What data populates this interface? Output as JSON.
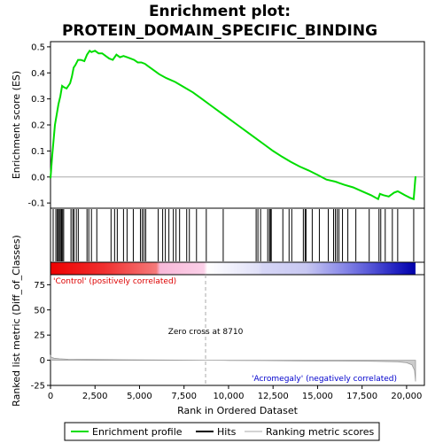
{
  "chart_data": {
    "type": "line",
    "title_line1": "Enrichment plot:",
    "title_line2": "PROTEIN_DOMAIN_SPECIFIC_BINDING",
    "colors": {
      "enrichment": "#00dd00",
      "hits": "#000000",
      "metric": "#aaaaaa",
      "positive": "#dd0000",
      "negative": "#0000cc",
      "zero_line": "#aaaaaa"
    },
    "top_panel": {
      "ylabel": "Enrichment score (ES)",
      "ylim": [
        -0.12,
        0.52
      ],
      "yticks": [
        -0.1,
        0.0,
        0.1,
        0.2,
        0.3,
        0.4,
        0.5
      ],
      "ytick_labels": [
        "-0.1",
        "0.0",
        "0.1",
        "0.2",
        "0.3",
        "0.4",
        "0.5"
      ],
      "es_curve": {
        "x": [
          0,
          100,
          250,
          350,
          450,
          550,
          650,
          750,
          900,
          1100,
          1200,
          1300,
          1400,
          1550,
          1700,
          1900,
          2050,
          2200,
          2300,
          2500,
          2700,
          2900,
          3100,
          3300,
          3500,
          3700,
          3900,
          4100,
          4300,
          4500,
          4700,
          4900,
          5100,
          5300,
          5500,
          5800,
          6100,
          6500,
          7000,
          7500,
          8000,
          8500,
          9000,
          9500,
          10000,
          10500,
          11000,
          11500,
          12000,
          12500,
          13000,
          13500,
          14000,
          14500,
          15000,
          15500,
          16000,
          16500,
          17000,
          17500,
          18000,
          18400,
          18500,
          18700,
          19000,
          19300,
          19500,
          19700,
          19900,
          20200,
          20400,
          20500
        ],
        "y": [
          -0.005,
          0.085,
          0.2,
          0.24,
          0.28,
          0.31,
          0.35,
          0.345,
          0.34,
          0.36,
          0.385,
          0.42,
          0.43,
          0.45,
          0.45,
          0.445,
          0.47,
          0.485,
          0.48,
          0.485,
          0.475,
          0.475,
          0.465,
          0.455,
          0.45,
          0.47,
          0.46,
          0.465,
          0.46,
          0.455,
          0.45,
          0.44,
          0.44,
          0.435,
          0.425,
          0.41,
          0.395,
          0.38,
          0.365,
          0.345,
          0.325,
          0.3,
          0.275,
          0.25,
          0.225,
          0.2,
          0.175,
          0.15,
          0.125,
          0.1,
          0.078,
          0.058,
          0.04,
          0.025,
          0.008,
          -0.01,
          -0.018,
          -0.03,
          -0.04,
          -0.055,
          -0.07,
          -0.085,
          -0.065,
          -0.07,
          -0.075,
          -0.06,
          -0.055,
          -0.062,
          -0.07,
          -0.08,
          -0.085,
          0.003
        ]
      }
    },
    "hits_positions": [
      150,
      300,
      380,
      440,
      500,
      560,
      620,
      680,
      740,
      1150,
      1250,
      1320,
      1450,
      1560,
      2050,
      2150,
      2300,
      2600,
      3400,
      3600,
      3750,
      4100,
      4300,
      4650,
      5050,
      5150,
      5250,
      5350,
      6050,
      6300,
      6450,
      6650,
      6900,
      7050,
      7250,
      7650,
      7800,
      8200,
      8750,
      9700,
      11550,
      11650,
      11800,
      12200,
      12300,
      12350,
      12400,
      13050,
      13400,
      13550,
      14200,
      14300,
      14350,
      14700,
      15100,
      15600,
      15900,
      16000,
      16100,
      16200,
      16400,
      16700,
      17150,
      17900,
      18450,
      18550,
      18800,
      19200,
      19500,
      20400
    ],
    "bottom_panel": {
      "ylabel": "Ranked list metric (Diff_of_Classes)",
      "xlabel": "Rank in Ordered Dataset",
      "ylim": [
        -25,
        85
      ],
      "yticks": [
        -25,
        0,
        25,
        50,
        75
      ],
      "ytick_labels": [
        "-25",
        "0",
        "25",
        "50",
        "75"
      ],
      "metric_curve": {
        "x": [
          0,
          50,
          200,
          500,
          1000,
          2000,
          4000,
          6000,
          8000,
          8710,
          10000,
          12000,
          14000,
          16000,
          18000,
          19500,
          20000,
          20300,
          20450,
          20500
        ],
        "y": [
          4.5,
          3.0,
          2.0,
          1.5,
          1.0,
          0.8,
          0.5,
          0.3,
          0.1,
          0.0,
          -0.2,
          -0.4,
          -0.6,
          -0.8,
          -1.0,
          -1.5,
          -2.5,
          -4.5,
          -10,
          -21
        ]
      },
      "zero_cross_rank": 8710,
      "zero_cross_label": "Zero cross at 8710",
      "positive_label": "'Control' (positively correlated)",
      "negative_label": "'Acromegaly' (negatively correlated)"
    },
    "xaxis": {
      "xlim": [
        0,
        21000
      ],
      "xticks": [
        0,
        2500,
        5000,
        7500,
        10000,
        12500,
        15000,
        17500,
        20000
      ],
      "xtick_labels": [
        "0",
        "2,500",
        "5,000",
        "7,500",
        "10,000",
        "12,500",
        "15,000",
        "17,500",
        "20,000"
      ],
      "n_genes": 20500
    },
    "legend": {
      "items": [
        "Enrichment profile",
        "Hits",
        "Ranking metric scores"
      ],
      "placement": "bottom"
    }
  }
}
